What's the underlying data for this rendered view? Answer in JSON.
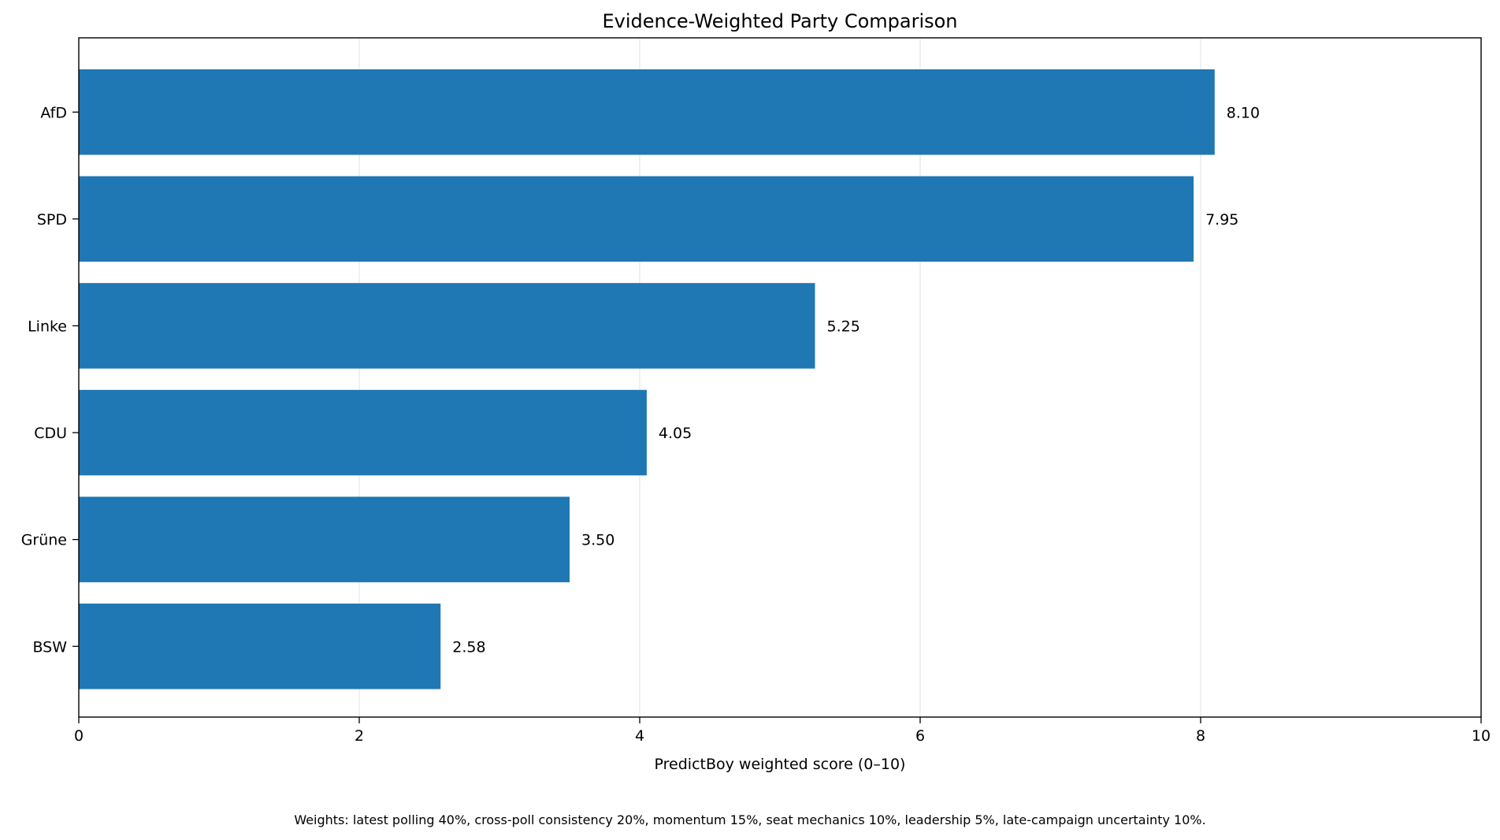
{
  "chart_data": {
    "type": "bar",
    "orientation": "horizontal",
    "title": "Evidence-Weighted Party Comparison",
    "xlabel": "PredictBoy weighted score (0–10)",
    "ylabel": "",
    "categories": [
      "AfD",
      "SPD",
      "Linke",
      "CDU",
      "Grüne",
      "BSW"
    ],
    "values": [
      8.1,
      7.95,
      5.25,
      4.05,
      3.5,
      2.58
    ],
    "value_labels": [
      "8.10",
      "7.95",
      "5.25",
      "4.05",
      "3.50",
      "2.58"
    ],
    "xlim": [
      0,
      10
    ],
    "xticks": [
      0,
      2,
      4,
      6,
      8,
      10
    ],
    "xtick_labels": [
      "0",
      "2",
      "4",
      "6",
      "8",
      "10"
    ],
    "grid": "x-axis vertical gridlines",
    "legend": "none",
    "colors": {
      "bar": "#1f77b4",
      "grid": "#e6e6e6",
      "axis": "#000000"
    },
    "footnote": "Weights: latest polling 40%, cross-poll consistency 20%, momentum 15%, seat mechanics 10%, leadership 5%, late-campaign uncertainty 10%."
  }
}
